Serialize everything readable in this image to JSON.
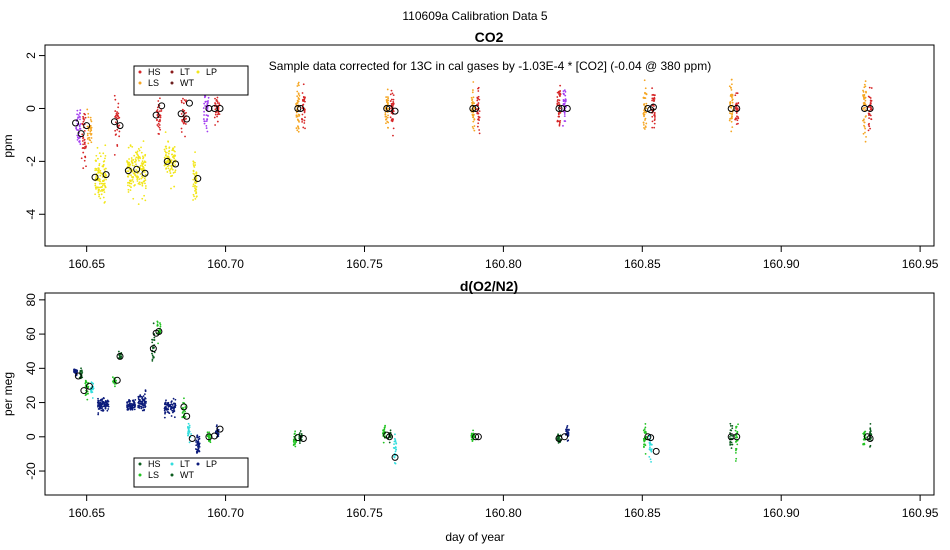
{
  "figure_title": "110609a   Calibration Data 5",
  "xlabel": "day of year",
  "chart_data": [
    {
      "type": "scatter",
      "title": "CO2",
      "ylabel": "ppm",
      "annotation": "Sample data corrected for 13C in cal gases by -1.03E-4 * [CO2] (-0.04 @ 380 ppm)",
      "xlim": [
        160.635,
        160.955
      ],
      "ylim": [
        -5.2,
        2.4
      ],
      "xticks": [
        160.65,
        160.7,
        160.75,
        160.8,
        160.85,
        160.9,
        160.95
      ],
      "xtick_labels": [
        "160.65",
        "160.70",
        "160.75",
        "160.80",
        "160.85",
        "160.90",
        "160.95"
      ],
      "yticks": [
        -4,
        -2,
        0,
        2
      ],
      "ytick_labels": [
        "-4",
        "-2",
        "0",
        "2"
      ],
      "legend": [
        {
          "name": "HS",
          "color": "#d62728"
        },
        {
          "name": "LS",
          "color": "#f5a623"
        },
        {
          "name": "LT",
          "color": "#8b1a1a"
        },
        {
          "name": "WT",
          "color": "#6b1f1f"
        },
        {
          "name": "LP",
          "color": "#f2e61a"
        }
      ],
      "clusters": [
        {
          "x": 160.647,
          "w": 0.0016,
          "y": -0.6,
          "sd": 0.7,
          "n": 40,
          "color": "#a23cf0"
        },
        {
          "x": 160.649,
          "w": 0.0016,
          "y": -1.1,
          "sd": 0.8,
          "n": 40,
          "color": "#d62728"
        },
        {
          "x": 160.651,
          "w": 0.0016,
          "y": -0.8,
          "sd": 0.6,
          "n": 30,
          "color": "#f5a623"
        },
        {
          "x": 160.655,
          "w": 0.004,
          "y": -2.6,
          "sd": 0.7,
          "n": 120,
          "color": "#f2e61a"
        },
        {
          "x": 160.661,
          "w": 0.0018,
          "y": -0.5,
          "sd": 0.6,
          "n": 35,
          "color": "#d62728"
        },
        {
          "x": 160.668,
          "w": 0.007,
          "y": -2.4,
          "sd": 0.7,
          "n": 170,
          "color": "#f2e61a"
        },
        {
          "x": 160.676,
          "w": 0.0018,
          "y": -0.3,
          "sd": 0.6,
          "n": 35,
          "color": "#d62728"
        },
        {
          "x": 160.68,
          "w": 0.004,
          "y": -2.0,
          "sd": 0.6,
          "n": 100,
          "color": "#f2e61a"
        },
        {
          "x": 160.685,
          "w": 0.0018,
          "y": -0.2,
          "sd": 0.6,
          "n": 35,
          "color": "#d62728"
        },
        {
          "x": 160.689,
          "w": 0.0014,
          "y": -2.7,
          "sd": 0.7,
          "n": 50,
          "color": "#f2e61a"
        },
        {
          "x": 160.693,
          "w": 0.0018,
          "y": 0.0,
          "sd": 0.6,
          "n": 40,
          "color": "#a23cf0"
        },
        {
          "x": 160.697,
          "w": 0.0018,
          "y": 0.0,
          "sd": 0.6,
          "n": 40,
          "color": "#d62728"
        },
        {
          "x": 160.726,
          "w": 0.0012,
          "y": 0.0,
          "sd": 0.7,
          "n": 50,
          "color": "#f5a623"
        },
        {
          "x": 160.728,
          "w": 0.0012,
          "y": 0.0,
          "sd": 0.6,
          "n": 35,
          "color": "#d62728"
        },
        {
          "x": 160.758,
          "w": 0.0012,
          "y": 0.0,
          "sd": 0.7,
          "n": 45,
          "color": "#f5a623"
        },
        {
          "x": 160.76,
          "w": 0.0012,
          "y": 0.0,
          "sd": 0.6,
          "n": 40,
          "color": "#d62728"
        },
        {
          "x": 160.789,
          "w": 0.0012,
          "y": 0.0,
          "sd": 0.7,
          "n": 40,
          "color": "#f5a623"
        },
        {
          "x": 160.791,
          "w": 0.0012,
          "y": 0.0,
          "sd": 0.6,
          "n": 35,
          "color": "#d62728"
        },
        {
          "x": 160.82,
          "w": 0.0012,
          "y": 0.0,
          "sd": 0.8,
          "n": 45,
          "color": "#d62728"
        },
        {
          "x": 160.822,
          "w": 0.0012,
          "y": 0.0,
          "sd": 0.6,
          "n": 35,
          "color": "#a23cf0"
        },
        {
          "x": 160.851,
          "w": 0.0012,
          "y": 0.0,
          "sd": 0.8,
          "n": 45,
          "color": "#f5a623"
        },
        {
          "x": 160.854,
          "w": 0.0012,
          "y": 0.0,
          "sd": 0.6,
          "n": 40,
          "color": "#d62728"
        },
        {
          "x": 160.882,
          "w": 0.0012,
          "y": 0.0,
          "sd": 0.8,
          "n": 45,
          "color": "#f5a623"
        },
        {
          "x": 160.884,
          "w": 0.0012,
          "y": 0.0,
          "sd": 0.6,
          "n": 35,
          "color": "#d62728"
        },
        {
          "x": 160.93,
          "w": 0.0012,
          "y": 0.0,
          "sd": 0.8,
          "n": 45,
          "color": "#f5a623"
        },
        {
          "x": 160.932,
          "w": 0.0012,
          "y": 0.0,
          "sd": 0.6,
          "n": 35,
          "color": "#d62728"
        }
      ],
      "means": [
        {
          "x": 160.646,
          "y": -0.55
        },
        {
          "x": 160.648,
          "y": -0.95
        },
        {
          "x": 160.65,
          "y": -0.65
        },
        {
          "x": 160.653,
          "y": -2.6
        },
        {
          "x": 160.657,
          "y": -2.5
        },
        {
          "x": 160.66,
          "y": -0.5
        },
        {
          "x": 160.662,
          "y": -0.65
        },
        {
          "x": 160.665,
          "y": -2.35
        },
        {
          "x": 160.668,
          "y": -2.3
        },
        {
          "x": 160.671,
          "y": -2.45
        },
        {
          "x": 160.675,
          "y": -0.25
        },
        {
          "x": 160.677,
          "y": 0.1
        },
        {
          "x": 160.679,
          "y": -2.0
        },
        {
          "x": 160.682,
          "y": -2.1
        },
        {
          "x": 160.684,
          "y": -0.2
        },
        {
          "x": 160.686,
          "y": -0.4
        },
        {
          "x": 160.687,
          "y": 0.2
        },
        {
          "x": 160.69,
          "y": -2.65
        },
        {
          "x": 160.694,
          "y": 0.0
        },
        {
          "x": 160.696,
          "y": 0.0
        },
        {
          "x": 160.698,
          "y": 0.0
        },
        {
          "x": 160.726,
          "y": 0.0
        },
        {
          "x": 160.727,
          "y": 0.0
        },
        {
          "x": 160.758,
          "y": 0.0
        },
        {
          "x": 160.759,
          "y": 0.0
        },
        {
          "x": 160.761,
          "y": -0.1
        },
        {
          "x": 160.789,
          "y": 0.0
        },
        {
          "x": 160.79,
          "y": 0.0
        },
        {
          "x": 160.82,
          "y": 0.0
        },
        {
          "x": 160.821,
          "y": 0.0
        },
        {
          "x": 160.823,
          "y": 0.0
        },
        {
          "x": 160.852,
          "y": 0.0
        },
        {
          "x": 160.853,
          "y": -0.05
        },
        {
          "x": 160.854,
          "y": 0.05
        },
        {
          "x": 160.882,
          "y": 0.0
        },
        {
          "x": 160.884,
          "y": 0.0
        },
        {
          "x": 160.93,
          "y": 0.0
        },
        {
          "x": 160.932,
          "y": 0.0
        }
      ]
    },
    {
      "type": "scatter",
      "title": "d(O2/N2)",
      "ylabel": "per meg",
      "xlim": [
        160.635,
        160.955
      ],
      "ylim": [
        -34,
        84
      ],
      "xticks": [
        160.65,
        160.7,
        160.75,
        160.8,
        160.85,
        160.9,
        160.95
      ],
      "xtick_labels": [
        "160.65",
        "160.70",
        "160.75",
        "160.80",
        "160.85",
        "160.90",
        "160.95"
      ],
      "yticks": [
        -20,
        0,
        20,
        40,
        60,
        80
      ],
      "ytick_labels": [
        "-20",
        "0",
        "20",
        "40",
        "60",
        "80"
      ],
      "legend": [
        {
          "name": "HS",
          "color": "#0b5d1e"
        },
        {
          "name": "LS",
          "color": "#22c322"
        },
        {
          "name": "LT",
          "color": "#33dddd"
        },
        {
          "name": "WT",
          "color": "#0b5d1e"
        },
        {
          "name": "LP",
          "color": "#0b1a7a"
        }
      ],
      "clusters": [
        {
          "x": 160.646,
          "w": 0.0012,
          "y": 38,
          "sd": 1.5,
          "n": 30,
          "color": "#0b1a7a"
        },
        {
          "x": 160.648,
          "w": 0.001,
          "y": 36,
          "sd": 3,
          "n": 20,
          "color": "#0b5d1e"
        },
        {
          "x": 160.65,
          "w": 0.0012,
          "y": 28,
          "sd": 4,
          "n": 25,
          "color": "#22c322"
        },
        {
          "x": 160.652,
          "w": 0.001,
          "y": 28,
          "sd": 4,
          "n": 20,
          "color": "#33dddd"
        },
        {
          "x": 160.656,
          "w": 0.004,
          "y": 19,
          "sd": 3,
          "n": 90,
          "color": "#0b1a7a"
        },
        {
          "x": 160.66,
          "w": 0.0012,
          "y": 33,
          "sd": 2,
          "n": 20,
          "color": "#22c322"
        },
        {
          "x": 160.662,
          "w": 0.001,
          "y": 47,
          "sd": 2,
          "n": 20,
          "color": "#0b5d1e"
        },
        {
          "x": 160.666,
          "w": 0.003,
          "y": 18,
          "sd": 3,
          "n": 70,
          "color": "#0b1a7a"
        },
        {
          "x": 160.67,
          "w": 0.003,
          "y": 21,
          "sd": 4,
          "n": 70,
          "color": "#0b1a7a"
        },
        {
          "x": 160.674,
          "w": 0.001,
          "y": 50,
          "sd": 10,
          "n": 25,
          "color": "#0b5d1e"
        },
        {
          "x": 160.676,
          "w": 0.0012,
          "y": 62,
          "sd": 5,
          "n": 25,
          "color": "#22c322"
        },
        {
          "x": 160.68,
          "w": 0.004,
          "y": 17,
          "sd": 4,
          "n": 90,
          "color": "#0b1a7a"
        },
        {
          "x": 160.685,
          "w": 0.0012,
          "y": 15,
          "sd": 5,
          "n": 25,
          "color": "#22c322"
        },
        {
          "x": 160.687,
          "w": 0.0012,
          "y": 3,
          "sd": 5,
          "n": 25,
          "color": "#33dddd"
        },
        {
          "x": 160.69,
          "w": 0.0014,
          "y": -5,
          "sd": 5,
          "n": 40,
          "color": "#0b1a7a"
        },
        {
          "x": 160.694,
          "w": 0.0012,
          "y": 0,
          "sd": 3,
          "n": 25,
          "color": "#22c322"
        },
        {
          "x": 160.697,
          "w": 0.0012,
          "y": 3,
          "sd": 3,
          "n": 30,
          "color": "#0b1a7a"
        },
        {
          "x": 160.725,
          "w": 0.001,
          "y": -2,
          "sd": 4,
          "n": 25,
          "color": "#22c322"
        },
        {
          "x": 160.727,
          "w": 0.001,
          "y": -1,
          "sd": 3,
          "n": 25,
          "color": "#0b5d1e"
        },
        {
          "x": 160.757,
          "w": 0.001,
          "y": 2,
          "sd": 3,
          "n": 25,
          "color": "#22c322"
        },
        {
          "x": 160.759,
          "w": 0.001,
          "y": 0,
          "sd": 3,
          "n": 20,
          "color": "#0b5d1e"
        },
        {
          "x": 160.761,
          "w": 0.001,
          "y": -8,
          "sd": 6,
          "n": 25,
          "color": "#33dddd"
        },
        {
          "x": 160.789,
          "w": 0.0012,
          "y": 0,
          "sd": 2,
          "n": 30,
          "color": "#22c322"
        },
        {
          "x": 160.82,
          "w": 0.0012,
          "y": -1,
          "sd": 3,
          "n": 30,
          "color": "#0b5d1e"
        },
        {
          "x": 160.823,
          "w": 0.0012,
          "y": 2,
          "sd": 4,
          "n": 30,
          "color": "#0b1a7a"
        },
        {
          "x": 160.851,
          "w": 0.001,
          "y": 0,
          "sd": 5,
          "n": 30,
          "color": "#22c322"
        },
        {
          "x": 160.853,
          "w": 0.001,
          "y": -6,
          "sd": 6,
          "n": 25,
          "color": "#33dddd"
        },
        {
          "x": 160.882,
          "w": 0.001,
          "y": 0,
          "sd": 6,
          "n": 25,
          "color": "#0b5d1e"
        },
        {
          "x": 160.884,
          "w": 0.001,
          "y": 0,
          "sd": 9,
          "n": 30,
          "color": "#22c322"
        },
        {
          "x": 160.93,
          "w": 0.001,
          "y": 0,
          "sd": 4,
          "n": 25,
          "color": "#22c322"
        },
        {
          "x": 160.932,
          "w": 0.001,
          "y": 0,
          "sd": 5,
          "n": 25,
          "color": "#0b5d1e"
        }
      ],
      "means": [
        {
          "x": 160.647,
          "y": 35.5
        },
        {
          "x": 160.649,
          "y": 27
        },
        {
          "x": 160.651,
          "y": 29.5
        },
        {
          "x": 160.661,
          "y": 33
        },
        {
          "x": 160.662,
          "y": 47
        },
        {
          "x": 160.674,
          "y": 51.5
        },
        {
          "x": 160.675,
          "y": 60.5
        },
        {
          "x": 160.676,
          "y": 61.5
        },
        {
          "x": 160.685,
          "y": 17.5
        },
        {
          "x": 160.686,
          "y": 12
        },
        {
          "x": 160.688,
          "y": -1
        },
        {
          "x": 160.694,
          "y": 0
        },
        {
          "x": 160.696,
          "y": 0.5
        },
        {
          "x": 160.698,
          "y": 4.5
        },
        {
          "x": 160.726,
          "y": -0.5
        },
        {
          "x": 160.728,
          "y": -1
        },
        {
          "x": 160.758,
          "y": 1
        },
        {
          "x": 160.759,
          "y": 0
        },
        {
          "x": 160.761,
          "y": -12
        },
        {
          "x": 160.79,
          "y": 0
        },
        {
          "x": 160.791,
          "y": 0
        },
        {
          "x": 160.82,
          "y": -1
        },
        {
          "x": 160.822,
          "y": 0
        },
        {
          "x": 160.852,
          "y": 0
        },
        {
          "x": 160.853,
          "y": -0.5
        },
        {
          "x": 160.855,
          "y": -8.5
        },
        {
          "x": 160.882,
          "y": 0
        },
        {
          "x": 160.884,
          "y": 0
        },
        {
          "x": 160.931,
          "y": 0
        },
        {
          "x": 160.932,
          "y": -1
        }
      ]
    }
  ]
}
